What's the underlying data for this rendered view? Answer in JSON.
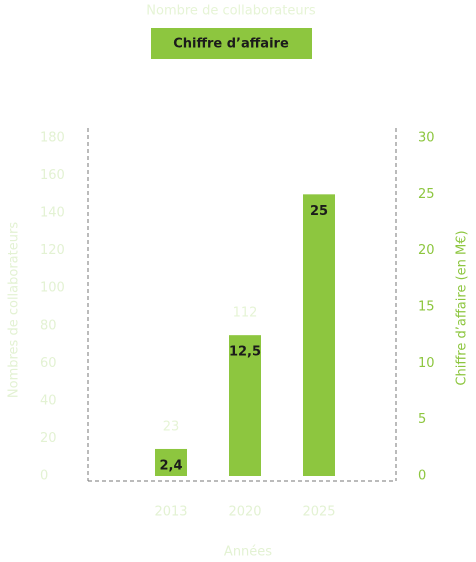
{
  "chart_data": {
    "type": "bar",
    "categories": [
      "2013",
      "2020",
      "2025"
    ],
    "series": [
      {
        "name": "Nombre de collaborateurs",
        "color": "#e6f4d6",
        "values": [
          23,
          112,
          null
        ],
        "visible": false
      },
      {
        "name": "Chiffre d’affaire",
        "color": "#8dc63f",
        "values": [
          2.4,
          12.5,
          25
        ],
        "value_labels": [
          "2,4",
          "12,5",
          "25"
        ],
        "axis": "y2",
        "visible": true
      }
    ],
    "ylabel": "Nombres de collaborateurs",
    "y2label": "Chiffre d’affaire (en M€)",
    "xlabel": "Années",
    "ylim": [
      0,
      180
    ],
    "yticks": [
      0,
      20,
      40,
      60,
      80,
      100,
      120,
      140,
      160,
      180
    ],
    "y2lim": [
      0,
      30
    ],
    "y2ticks": [
      0,
      5,
      10,
      15,
      20,
      25,
      30
    ]
  }
}
